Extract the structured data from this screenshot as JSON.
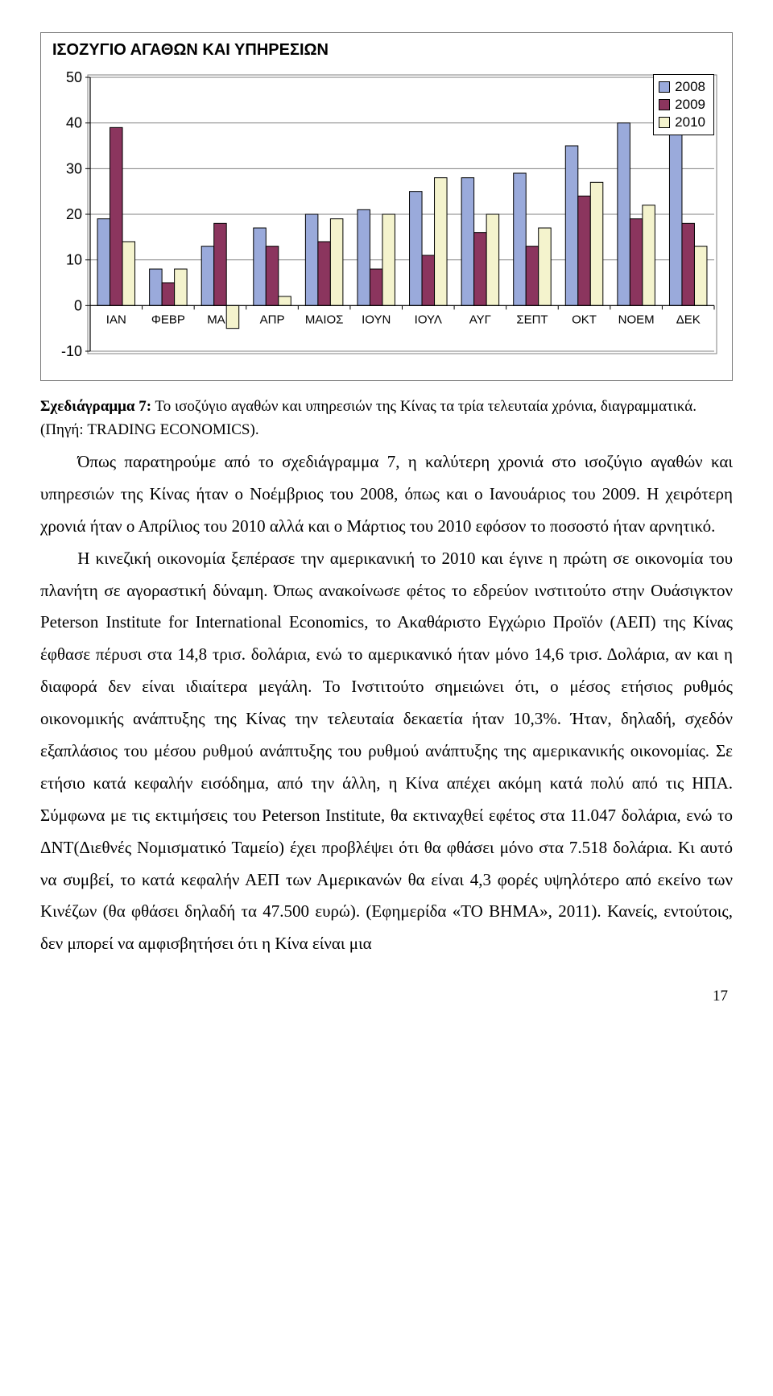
{
  "chart": {
    "type": "bar",
    "title": "ΙΣΟΖΥΓΙΟ ΑΓΑΘΩΝ ΚΑΙ ΥΠΗΡΕΣΙΩΝ",
    "categories": [
      "ΙΑΝ",
      "ΦΕΒΡ",
      "ΜΑΡ",
      "ΑΠΡ",
      "ΜΑΙΟΣ",
      "ΙΟΥΝ",
      "ΙΟΥΛ",
      "ΑΥΓ",
      "ΣΕΠΤ",
      "ΟΚΤ",
      "ΝΟΕΜ",
      "ΔΕΚ"
    ],
    "series": [
      {
        "name": "2008",
        "color": "#9aaadb",
        "values": [
          19,
          8,
          13,
          17,
          20,
          21,
          25,
          28,
          29,
          35,
          40,
          39
        ]
      },
      {
        "name": "2009",
        "color": "#8b355e",
        "values": [
          39,
          5,
          18,
          13,
          14,
          8,
          11,
          16,
          13,
          24,
          19,
          18
        ]
      },
      {
        "name": "2010",
        "color": "#f4f3cd",
        "values": [
          14,
          8,
          -5,
          2,
          19,
          20,
          28,
          20,
          17,
          27,
          22,
          13
        ]
      }
    ],
    "ylim": [
      -10,
      50
    ],
    "ytick_step": 10,
    "bar_border": "#000000",
    "grid_color": "#808080",
    "axis_font": "Arial",
    "axis_fontsize": 18,
    "background": "#ffffff"
  },
  "caption": {
    "bold": "Σχεδιάγραμμα 7:",
    "rest": " Το ισοζύγιο αγαθών και υπηρεσιών της Κίνας τα τρία τελευταία χρόνια, διαγραμματικά. (Πηγή: TRADING ECONOMICS)."
  },
  "paragraphs": [
    "Όπως παρατηρούμε από το σχεδιάγραμμα 7, η καλύτερη χρονιά στο ισοζύγιο αγαθών και υπηρεσιών της Κίνας ήταν ο Νοέμβριος του 2008, όπως και ο Ιανουάριος του 2009. Η χειρότερη χρονιά ήταν ο Απρίλιος του 2010 αλλά και ο Μάρτιος του 2010 εφόσον το ποσοστό ήταν αρνητικό.",
    "Η κινεζική οικονομία ξεπέρασε την αμερικανική το 2010 και έγινε η πρώτη σε οικονομία του πλανήτη σε αγοραστική δύναμη. Όπως ανακοίνωσε φέτος το εδρεύον ινστιτούτο στην Ουάσιγκτον Peterson Institute for International Economics, το Ακαθάριστο Εγχώριο Προϊόν (ΑΕΠ) της Κίνας έφθασε πέρυσι στα 14,8 τρισ. δολάρια, ενώ το αμερικανικό ήταν μόνο 14,6 τρισ. Δολάρια, αν και η διαφορά δεν είναι ιδιαίτερα μεγάλη. Το Ινστιτούτο σημειώνει ότι, ο μέσος ετήσιος ρυθμός οικονομικής ανάπτυξης της Κίνας την τελευταία δεκαετία ήταν 10,3%. Ήταν, δηλαδή, σχεδόν εξαπλάσιος του μέσου ρυθμού ανάπτυξης του ρυθμού ανάπτυξης της αμερικανικής οικονομίας. Σε ετήσιο κατά κεφαλήν εισόδημα, από την άλλη, η Κίνα απέχει ακόμη κατά πολύ από τις ΗΠΑ. Σύμφωνα με τις εκτιμήσεις του Peterson Institute, θα εκτιναχθεί εφέτος στα 11.047 δολάρια, ενώ το ΔΝΤ(Διεθνές Νομισματικό Ταμείο) έχει προβλέψει ότι θα φθάσει μόνο στα 7.518 δολάρια. Κι αυτό να συμβεί, το κατά κεφαλήν ΑΕΠ των Αμερικανών θα είναι 4,3 φορές υψηλότερο από εκείνο των Κινέζων (θα φθάσει δηλαδή τα 47.500 ευρώ). (Εφημερίδα «ΤΟ ΒΗΜΑ», 2011).  Κανείς, εντούτοις, δεν μπορεί να αμφισβητήσει ότι η Κίνα είναι μια"
  ],
  "page_number": "17"
}
